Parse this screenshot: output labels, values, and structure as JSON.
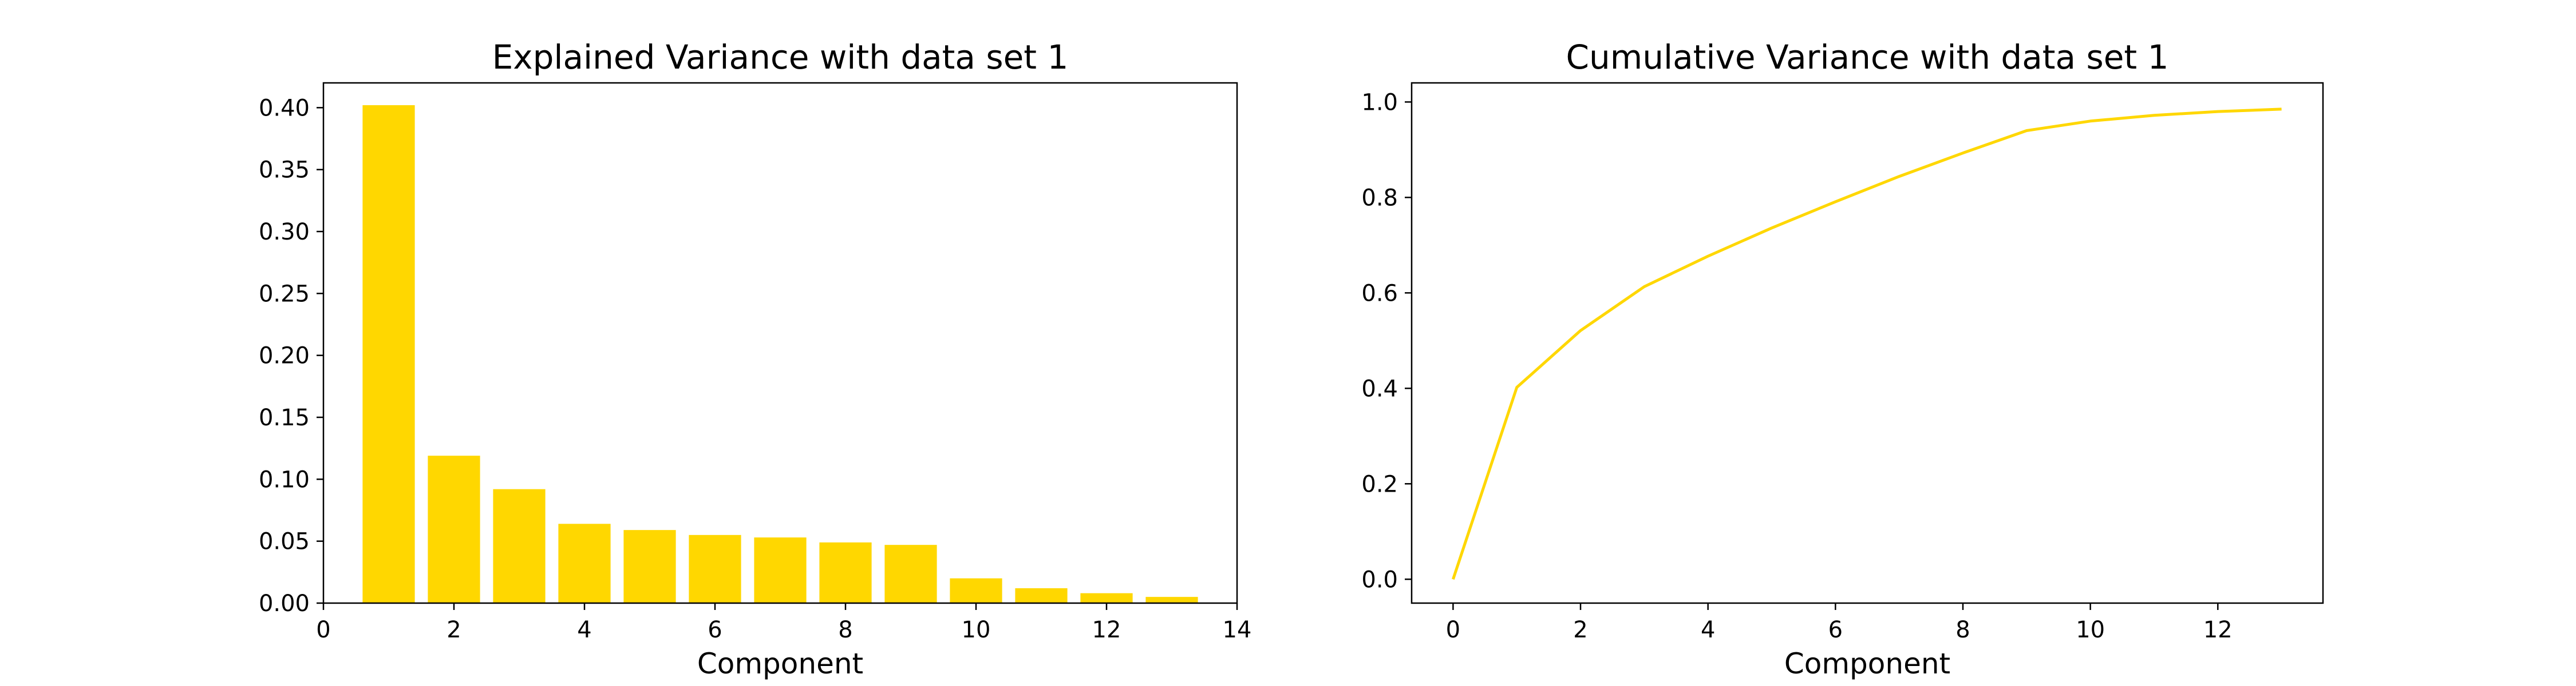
{
  "chart_data": [
    {
      "type": "bar",
      "title": "Explained Variance with data set 1",
      "xlabel": "Component",
      "ylabel": "",
      "x": [
        1,
        2,
        3,
        4,
        5,
        6,
        7,
        8,
        9,
        10,
        11,
        12,
        13
      ],
      "values": [
        0.402,
        0.119,
        0.092,
        0.064,
        0.059,
        0.055,
        0.053,
        0.049,
        0.047,
        0.02,
        0.012,
        0.008,
        0.005
      ],
      "xlim": [
        0,
        14
      ],
      "ylim": [
        0,
        0.42
      ],
      "xticks": [
        "0",
        "2",
        "4",
        "6",
        "8",
        "10",
        "12",
        "14"
      ],
      "yticks": [
        "0.00",
        "0.05",
        "0.10",
        "0.15",
        "0.20",
        "0.25",
        "0.30",
        "0.35",
        "0.40"
      ],
      "grid": false,
      "color": "#FFD700"
    },
    {
      "type": "line",
      "title": "Cumulative Variance with data set 1",
      "xlabel": "Component",
      "ylabel": "",
      "x": [
        0,
        1,
        2,
        3,
        4,
        5,
        6,
        7,
        8,
        9,
        10,
        11,
        12,
        13
      ],
      "values": [
        0.0,
        0.402,
        0.521,
        0.613,
        0.677,
        0.736,
        0.791,
        0.844,
        0.893,
        0.94,
        0.96,
        0.972,
        0.98,
        0.985
      ],
      "xlim": [
        -0.65,
        13.65
      ],
      "ylim": [
        -0.05,
        1.04
      ],
      "xticks": [
        "0",
        "2",
        "4",
        "6",
        "8",
        "10",
        "12"
      ],
      "yticks": [
        "0.0",
        "0.2",
        "0.4",
        "0.6",
        "0.8",
        "1.0"
      ],
      "grid": false,
      "color": "#FFD700"
    }
  ]
}
